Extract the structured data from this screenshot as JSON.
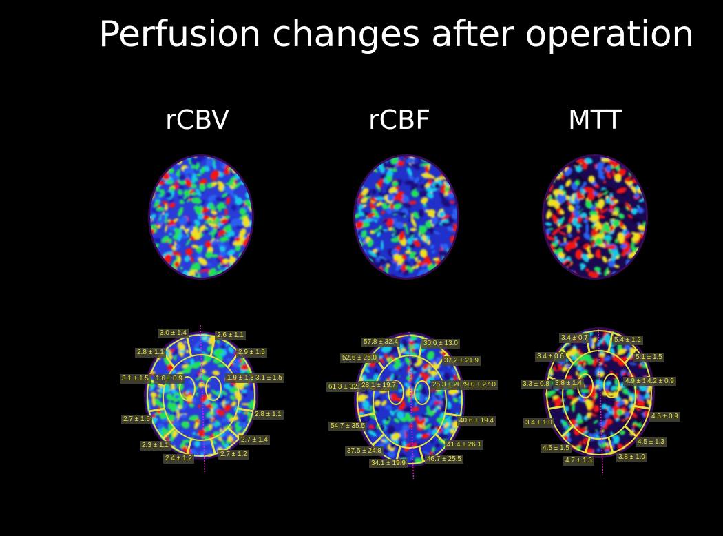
{
  "title": "Perfusion changes after operation",
  "columns": [
    {
      "label": "rCBV",
      "labels": [
        "3.0 ± 1.4",
        "2.6 ± 1.1",
        "2.8 ± 1.1",
        "2.9 ± 1.5",
        "3.1 ± 1.5",
        "1.6 ± 0.9",
        "1.9 ± 1.3",
        "3.1 ± 1.5",
        "2.8 ± 1.1",
        "2.7 ± 1.5",
        "2.7 ± 1.4",
        "2.3 ± 1.1",
        "2.7 ± 1.2",
        "2.4 ± 1.2"
      ]
    },
    {
      "label": "rCBF",
      "labels": [
        "57.8 ± 32.4",
        "30.0 ± 13.0",
        "52.6 ± 25.0",
        "37.2 ± 21.9",
        "61.3 ± 32.1",
        "28.1 ± 19.7",
        "25.3 ± 20.7",
        "79.0 ± 27.0",
        "40.6 ± 19.4",
        "54.7 ± 35.5",
        "41.4 ± 26.1",
        "37.5 ± 24.8",
        "46.7 ± 25.5",
        "34.1 ± 19.9"
      ]
    },
    {
      "label": "MTT",
      "labels": [
        "3.4 ± 0.7",
        "5.4 ± 1.2",
        "3.4 ± 0.6",
        "5.1 ± 1.5",
        "3.3 ± 0.8",
        "3.8 ± 1.4",
        "4.9 ± 1.1",
        "4.2 ± 0.9",
        "4.5 ± 0.9",
        "3.4 ± 1.0",
        "4.5 ± 1.3",
        "4.5 ± 1.5",
        "3.8 ± 1.0",
        "4.7 ± 1.3"
      ]
    }
  ],
  "colors": {
    "roi_outline": "#e8e23a",
    "midline": "#e020e0",
    "label_text": "#e8e23a"
  }
}
